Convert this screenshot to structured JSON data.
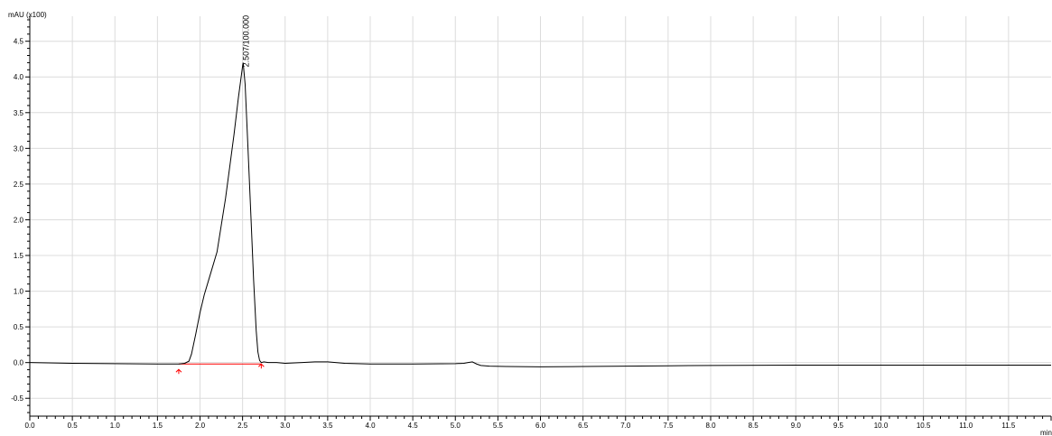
{
  "chart_data": {
    "type": "line",
    "title": "",
    "y_unit_label": "mAU (x100)",
    "x_unit_label": "min",
    "xlim": [
      0.0,
      12.0
    ],
    "ylim": [
      -0.75,
      4.85
    ],
    "grid": true,
    "x_ticks": [
      0.0,
      0.5,
      1.0,
      1.5,
      2.0,
      2.5,
      3.0,
      3.5,
      4.0,
      4.5,
      5.0,
      5.5,
      6.0,
      6.5,
      7.0,
      7.5,
      8.0,
      8.5,
      9.0,
      9.5,
      10.0,
      10.5,
      11.0,
      11.5
    ],
    "x_tick_labels": [
      "0.0",
      "0.5",
      "1.0",
      "1.5",
      "2.0",
      "2.5",
      "3.0",
      "3.5",
      "4.0",
      "4.5",
      "5.0",
      "5.5",
      "6.0",
      "6.5",
      "7.0",
      "7.5",
      "8.0",
      "8.5",
      "9.0",
      "9.5",
      "10.0",
      "10.5",
      "11.0",
      "11.5"
    ],
    "y_ticks": [
      -0.5,
      0.0,
      0.5,
      1.0,
      1.5,
      2.0,
      2.5,
      3.0,
      3.5,
      4.0,
      4.5
    ],
    "y_tick_labels": [
      "-0.5",
      "0.0",
      "0.5",
      "1.0",
      "1.5",
      "2.0",
      "2.5",
      "3.0",
      "3.5",
      "4.0",
      "4.5"
    ],
    "series": [
      {
        "color": "#000000",
        "x": [
          0.0,
          0.5,
          1.0,
          1.5,
          1.75,
          1.82,
          1.87,
          1.9,
          1.95,
          2.0,
          2.05,
          2.1,
          2.2,
          2.3,
          2.35,
          2.4,
          2.45,
          2.5,
          2.507,
          2.53,
          2.56,
          2.6,
          2.63,
          2.66,
          2.68,
          2.7,
          2.72,
          2.75,
          2.8,
          2.9,
          3.0,
          3.2,
          3.35,
          3.5,
          3.7,
          4.0,
          4.5,
          5.0,
          5.1,
          5.15,
          5.2,
          5.25,
          5.3,
          5.4,
          5.6,
          6.0,
          6.5,
          7.0,
          7.5,
          8.0,
          9.0,
          10.0,
          11.0,
          11.5,
          12.0
        ],
        "y": [
          0.0,
          -0.01,
          -0.015,
          -0.02,
          -0.02,
          -0.01,
          0.02,
          0.12,
          0.4,
          0.7,
          0.95,
          1.15,
          1.55,
          2.3,
          2.75,
          3.2,
          3.7,
          4.15,
          4.2,
          3.9,
          3.1,
          2.0,
          1.15,
          0.45,
          0.15,
          0.03,
          0.0,
          0.01,
          0.0,
          0.0,
          -0.01,
          0.0,
          0.01,
          0.01,
          -0.01,
          -0.02,
          -0.02,
          -0.015,
          -0.01,
          0.0,
          0.01,
          -0.02,
          -0.04,
          -0.05,
          -0.055,
          -0.06,
          -0.055,
          -0.05,
          -0.045,
          -0.04,
          -0.035,
          -0.035,
          -0.035,
          -0.035,
          -0.035
        ]
      }
    ],
    "peak_annotations": [
      {
        "x": 2.507,
        "y": 4.2,
        "label": "2.507/100.000"
      }
    ],
    "baseline": {
      "color": "#ff0000",
      "start": {
        "x": 1.75,
        "y": -0.02
      },
      "end": {
        "x": 2.72,
        "y": -0.02
      }
    }
  }
}
